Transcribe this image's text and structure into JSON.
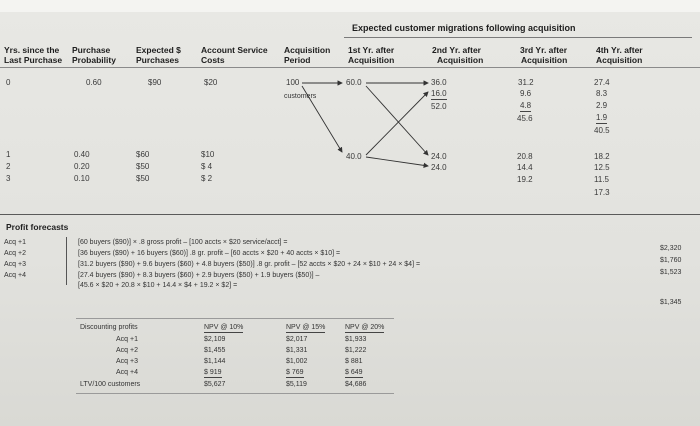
{
  "title": "Expected customer migrations following acquisition",
  "headers": {
    "yrs": [
      "Yrs. since the",
      "Last Purchase"
    ],
    "purchase": [
      "Purchase",
      "Probability"
    ],
    "expected": [
      "Expected $",
      "Purchases"
    ],
    "account": [
      "Account Service",
      "Costs"
    ],
    "acqperiod": [
      "Acquisition",
      "Period"
    ],
    "yr1": [
      "1st Yr. after",
      "Acquisition"
    ],
    "yr2": [
      "2nd Yr. after",
      "Acquisition"
    ],
    "yr3": [
      "3rd Yr. after",
      "Acquisition"
    ],
    "yr4": [
      "4th Yr. after",
      "Acquisition"
    ]
  },
  "rows": {
    "r0": {
      "yrs": "0",
      "prob": "0.60",
      "exp": "$90",
      "cost": "$20"
    },
    "r1": {
      "yrs": "1",
      "prob": "0.40",
      "exp": "$60",
      "cost": "$10"
    },
    "r2": {
      "yrs": "2",
      "prob": "0.20",
      "exp": "$50",
      "cost": "$ 4"
    },
    "r3": {
      "yrs": "3",
      "prob": "0.10",
      "exp": "$50",
      "cost": "$ 2"
    }
  },
  "acq": {
    "value": "100",
    "label": "customers"
  },
  "yr1": {
    "top": "60.0",
    "bottom": "40.0"
  },
  "yr2": {
    "a": "36.0",
    "b": "16.0",
    "c": "52.0",
    "d": "24.0",
    "e": "24.0"
  },
  "yr3": {
    "a": "31.2",
    "b": "9.6",
    "c": "4.8",
    "d": "45.6",
    "e": "20.8",
    "f": "14.4",
    "g": "19.2"
  },
  "yr4": {
    "a": "27.4",
    "b": "8.3",
    "c": "2.9",
    "d": "1.9",
    "e": "40.5",
    "f": "18.2",
    "g": "12.5",
    "h": "11.5",
    "i": "17.3"
  },
  "profit": {
    "heading": "Profit forecasts",
    "labels": [
      "Acq +1",
      "Acq +2",
      "Acq +3",
      "Acq +4"
    ],
    "formulas": [
      "[60 buyers ($90)] × .8 gross profit – [100 accts × $20 service/acct] =",
      "[36 buyers ($90) + 16 buyers ($60)] .8 gr. profit – [60 accts × $20 + 40 accts × $10] =",
      "[31.2 buyers ($90) + 9.6 buyers ($60) + 4.8 buyers ($50)] .8 gr. profit – [52 accts × $20 + 24 × $10 + 24 × $4] =",
      "[27.4 buyers ($90) + 8.3 buyers ($60) + 2.9 buyers ($50) + 1.9 buyers ($50)] –",
      "[45.6 × $20 + 20.8 × $10 + 14.4 × $4 + 19.2 × $2] ="
    ],
    "values": [
      "$2,320",
      "$1,760",
      "$1,523",
      "$1,345"
    ]
  },
  "npv": {
    "label": "Discounting profits",
    "headers": [
      "NPV @ 10%",
      "NPV @ 15%",
      "NPV @ 20%"
    ],
    "rowlabels": [
      "Acq +1",
      "Acq +2",
      "Acq +3",
      "Acq +4"
    ],
    "col10": [
      "$2,109",
      "$1,455",
      "$1,144",
      "$ 919"
    ],
    "col15": [
      "$2,017",
      "$1,331",
      "$1,002",
      "$ 769"
    ],
    "col20": [
      "$1,933",
      "$1,222",
      "$ 881",
      "$ 649"
    ],
    "ltv_label": "LTV/100 customers",
    "ltv": [
      "$5,627",
      "$5,119",
      "$4,686"
    ]
  }
}
